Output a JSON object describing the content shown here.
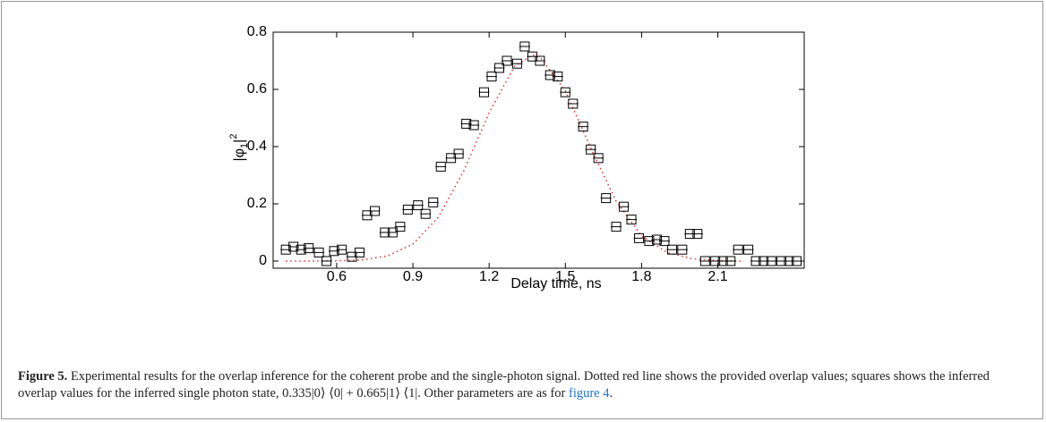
{
  "chart_data": {
    "type": "scatter",
    "xlabel": "Delay time, ns",
    "ylabel": {
      "base": "|φ",
      "sub": "1",
      "close": "|",
      "sup": "2"
    },
    "xlim": [
      0.35,
      2.44
    ],
    "ylim": [
      -0.025,
      0.8
    ],
    "xticks": [
      0.6,
      0.9,
      1.2,
      1.5,
      1.8,
      2.1
    ],
    "yticks": [
      0,
      0.2,
      0.4,
      0.6,
      0.8
    ],
    "series": [
      {
        "kind": "line",
        "color": "#e03030",
        "x": [
          0.4,
          0.5,
          0.6,
          0.7,
          0.8,
          0.9,
          1.0,
          1.1,
          1.2,
          1.3,
          1.37,
          1.4,
          1.5,
          1.6,
          1.7,
          1.8,
          1.9,
          2.0,
          2.1,
          2.2
        ],
        "values": [
          0,
          0,
          0.001,
          0.004,
          0.018,
          0.059,
          0.153,
          0.315,
          0.518,
          0.681,
          0.72,
          0.713,
          0.595,
          0.395,
          0.209,
          0.088,
          0.03,
          0.008,
          0.002,
          0
        ]
      },
      {
        "kind": "markers",
        "color": "#000000",
        "x": [
          0.4,
          0.43,
          0.46,
          0.49,
          0.53,
          0.56,
          0.59,
          0.62,
          0.66,
          0.69,
          0.72,
          0.75,
          0.79,
          0.82,
          0.85,
          0.88,
          0.92,
          0.95,
          0.98,
          1.01,
          1.05,
          1.08,
          1.11,
          1.14,
          1.18,
          1.21,
          1.24,
          1.27,
          1.31,
          1.34,
          1.37,
          1.4,
          1.44,
          1.47,
          1.5,
          1.53,
          1.57,
          1.6,
          1.63,
          1.66,
          1.7,
          1.73,
          1.76,
          1.79,
          1.83,
          1.86,
          1.89,
          1.92,
          1.96,
          1.99,
          2.02,
          2.05,
          2.09,
          2.12,
          2.15,
          2.18,
          2.22,
          2.25,
          2.28,
          2.31,
          2.35,
          2.38,
          2.41
        ],
        "values": [
          0.04,
          0.05,
          0.04,
          0.045,
          0.03,
          0,
          0.035,
          0.04,
          0.015,
          0.03,
          0.16,
          0.175,
          0.1,
          0.1,
          0.12,
          0.18,
          0.195,
          0.165,
          0.205,
          0.33,
          0.36,
          0.375,
          0.48,
          0.475,
          0.59,
          0.645,
          0.675,
          0.7,
          0.69,
          0.75,
          0.715,
          0.7,
          0.65,
          0.645,
          0.59,
          0.55,
          0.47,
          0.39,
          0.36,
          0.22,
          0.12,
          0.19,
          0.145,
          0.08,
          0.07,
          0.075,
          0.07,
          0.04,
          0.04,
          0.095,
          0.095,
          0,
          0,
          0,
          0,
          0.04,
          0.04,
          0,
          0,
          0,
          0,
          0,
          0
        ]
      }
    ]
  },
  "caption": {
    "label": "Figure 5.",
    "text": " Experimental results for the overlap inference for the coherent probe and the single-photon signal. Dotted red line shows the provided overlap values; squares shows the inferred overlap values for the inferred single photon state, 0.335|0⟩ ⟨0| + 0.665|1⟩ ⟨1|. Other parameters are as for ",
    "link": "figure 4",
    "end": "."
  }
}
